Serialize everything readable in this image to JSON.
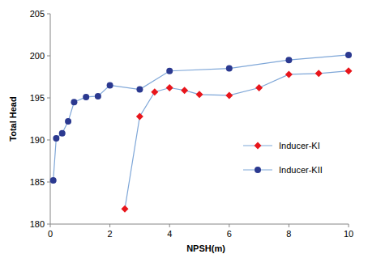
{
  "chart_data": {
    "type": "line",
    "x_label": "NPSH(m)",
    "y_label": "Total Head",
    "xlim": [
      0,
      10
    ],
    "xticks": [
      0,
      2,
      4,
      6,
      8,
      10
    ],
    "ylim": [
      180,
      205
    ],
    "yticks": [
      180,
      185,
      190,
      195,
      200,
      205
    ],
    "grid": false,
    "legend": "right",
    "series": [
      {
        "name": "Inducer-KI",
        "color": "#e8151b",
        "marker": "diamond",
        "x": [
          2.5,
          3.0,
          3.5,
          4.0,
          4.5,
          5.0,
          6.0,
          7.0,
          8.0,
          9.0,
          10.0
        ],
        "values": [
          181.8,
          192.8,
          195.7,
          196.2,
          195.9,
          195.4,
          195.3,
          196.2,
          197.8,
          197.9,
          198.2
        ]
      },
      {
        "name": "Inducer-KII",
        "color": "#2b3990",
        "marker": "circle",
        "x": [
          0.1,
          0.2,
          0.4,
          0.6,
          0.8,
          1.2,
          1.6,
          2.0,
          3.0,
          4.0,
          6.0,
          8.0,
          10.0
        ],
        "values": [
          185.2,
          190.2,
          190.8,
          192.2,
          194.5,
          195.1,
          195.2,
          196.5,
          196.0,
          198.2,
          198.5,
          199.5,
          200.1
        ]
      }
    ]
  }
}
